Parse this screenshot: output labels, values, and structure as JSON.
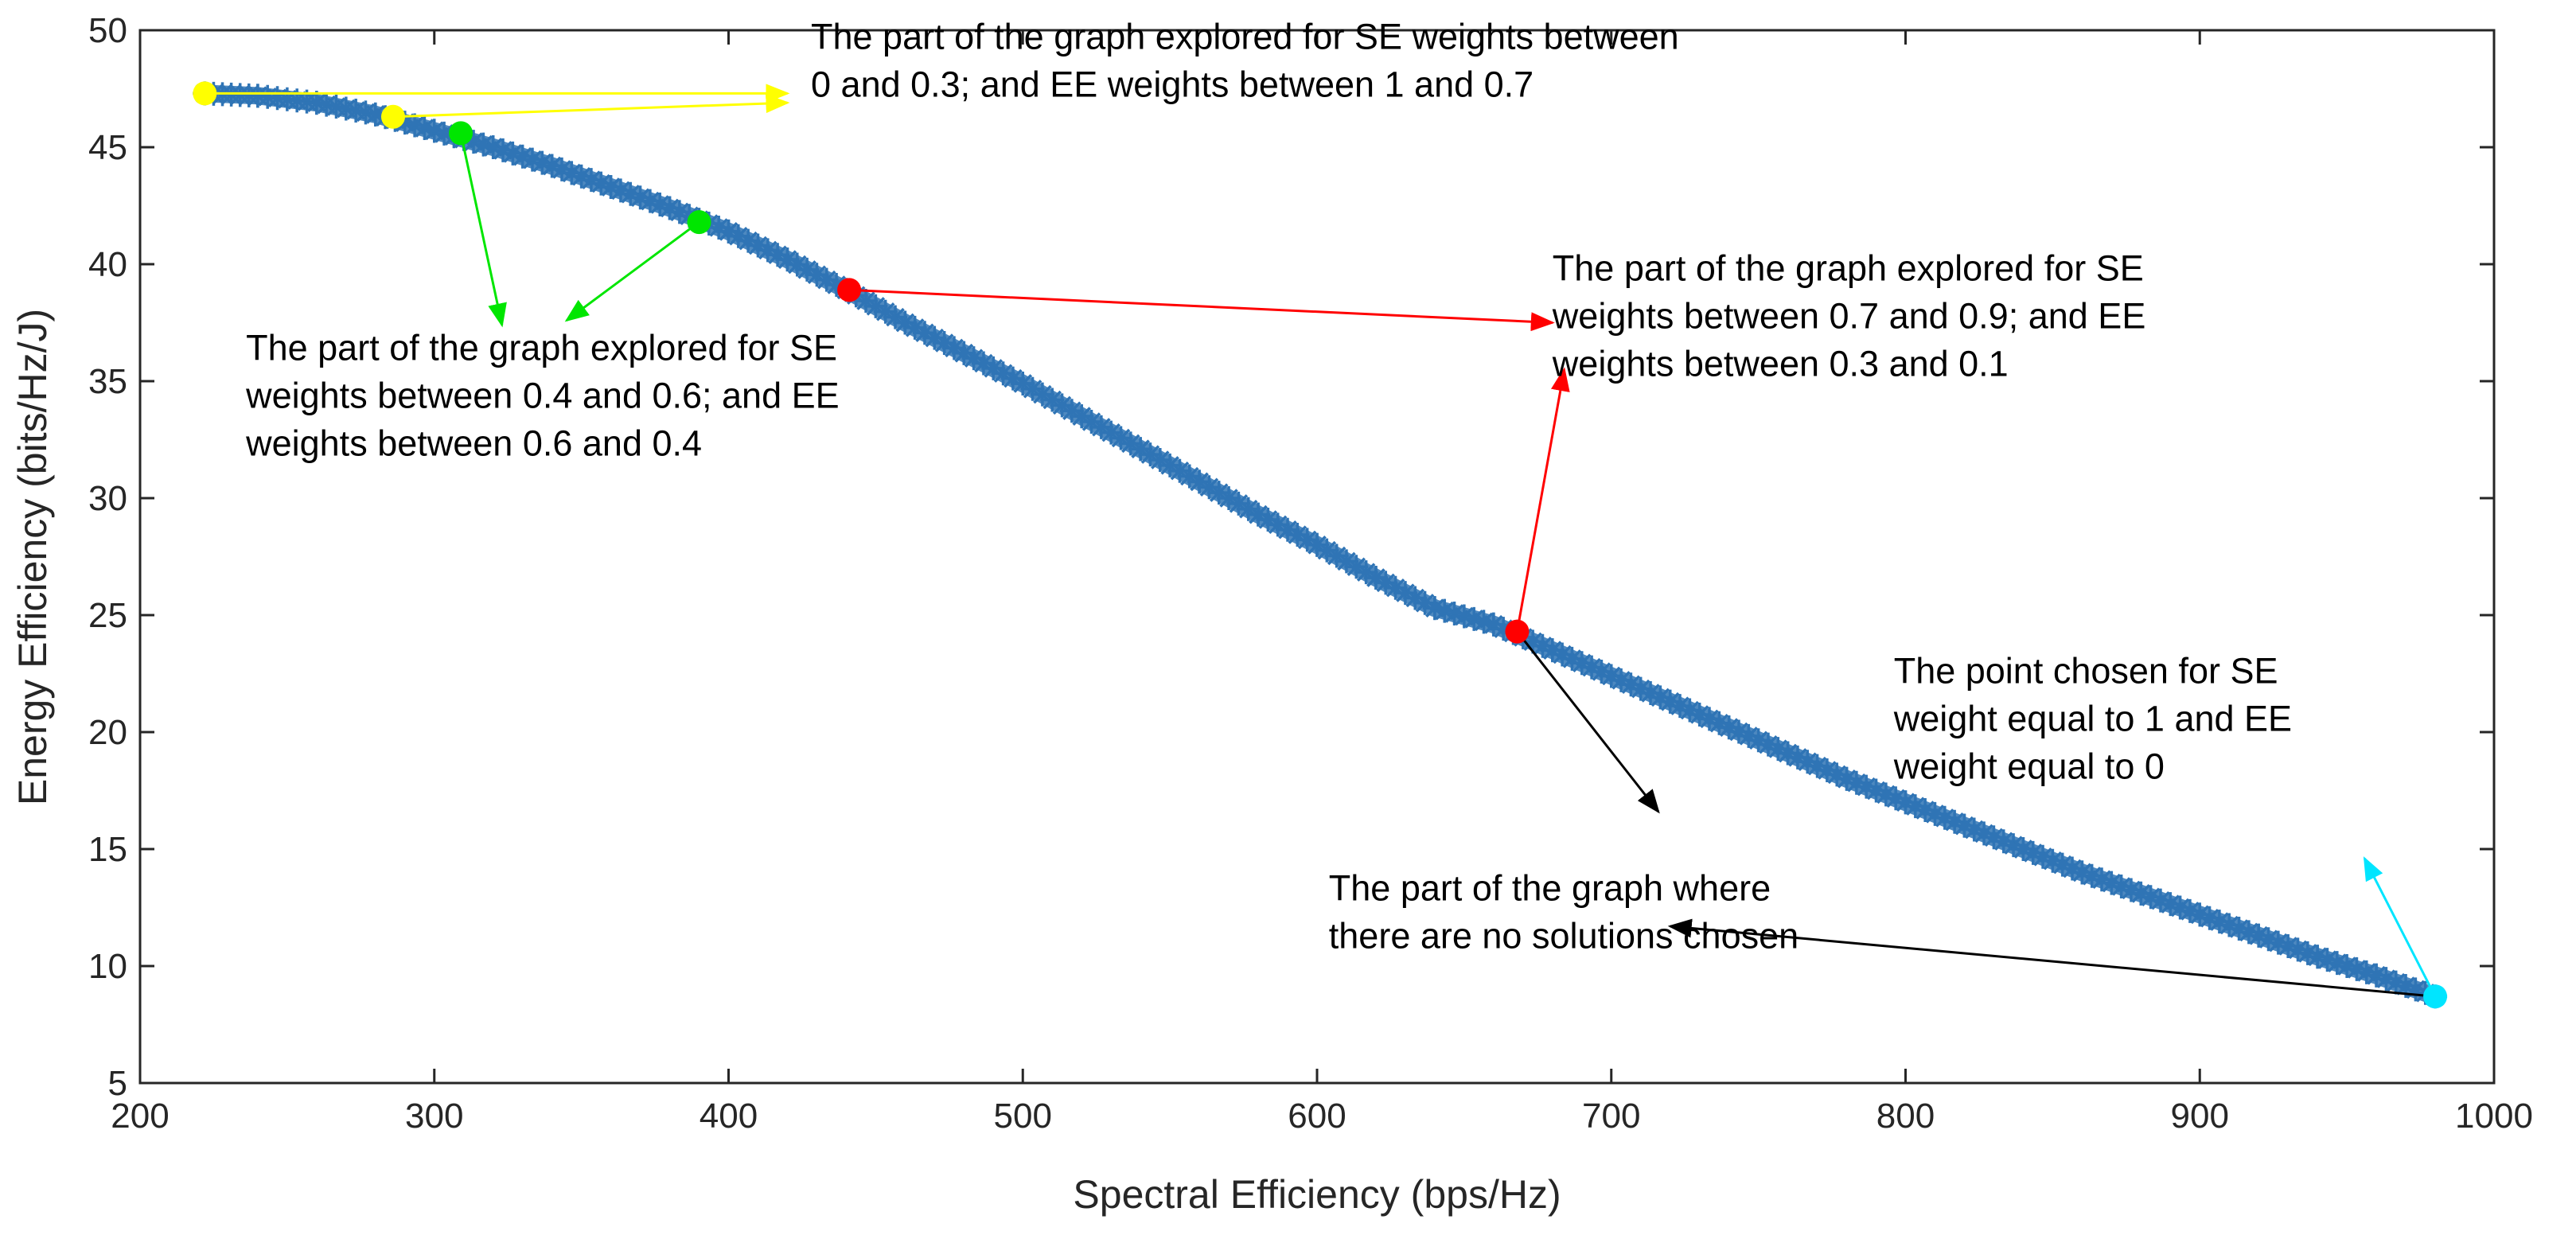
{
  "chart_data": {
    "type": "scatter",
    "title": "",
    "xlabel": "Spectral Efficiency (bps/Hz)",
    "ylabel": "Energy Efficiency (bits/Hz/J)",
    "xlim": [
      200,
      1000
    ],
    "ylim": [
      5,
      50
    ],
    "xticks": [
      200,
      300,
      400,
      500,
      600,
      700,
      800,
      900,
      1000
    ],
    "yticks": [
      5,
      10,
      15,
      20,
      25,
      30,
      35,
      40,
      45,
      50
    ],
    "grid": false,
    "colors": {
      "series": "#2f74b5",
      "yellow": "#ffff00",
      "green": "#00e600",
      "red": "#ff0000",
      "black": "#000000",
      "cyan": "#00e5ff",
      "axis": "#262626"
    },
    "series": [
      {
        "marker": "asterisk",
        "x": [
          222,
          240,
          260,
          280,
          300,
          320,
          340,
          360,
          380,
          400,
          420,
          440,
          460,
          480,
          500,
          520,
          540,
          560,
          580,
          600,
          620,
          640,
          660,
          680,
          700,
          720,
          740,
          760,
          780,
          800,
          820,
          840,
          860,
          880,
          900,
          920,
          940,
          960,
          980
        ],
        "y": [
          47.3,
          47.2,
          46.9,
          46.4,
          45.7,
          45.0,
          44.2,
          43.3,
          42.4,
          41.4,
          40.2,
          38.9,
          37.5,
          36.2,
          34.9,
          33.5,
          32.1,
          30.7,
          29.3,
          28.0,
          26.6,
          25.3,
          24.6,
          23.5,
          22.4,
          21.3,
          20.2,
          19.1,
          18.0,
          17.0,
          16.0,
          15.0,
          14.0,
          13.1,
          12.2,
          11.3,
          10.4,
          9.6,
          8.7
        ]
      }
    ],
    "highlights": [
      {
        "color": "yellow",
        "x": 222,
        "y": 47.3
      },
      {
        "color": "yellow",
        "x": 286,
        "y": 46.3
      },
      {
        "color": "green",
        "x": 309,
        "y": 45.6
      },
      {
        "color": "green",
        "x": 390,
        "y": 41.8
      },
      {
        "color": "red",
        "x": 441,
        "y": 38.9
      },
      {
        "color": "red",
        "x": 668,
        "y": 24.3
      },
      {
        "color": "cyan",
        "x": 980,
        "y": 8.7
      }
    ],
    "arrows": [
      {
        "color": "yellow",
        "from": [
          222,
          47.3
        ],
        "to": [
          420,
          47.3
        ]
      },
      {
        "color": "yellow",
        "from": [
          286,
          46.3
        ],
        "to": [
          420,
          46.9
        ]
      },
      {
        "color": "green",
        "from": [
          309,
          45.6
        ],
        "to": [
          323,
          37.4
        ]
      },
      {
        "color": "green",
        "from": [
          390,
          41.8
        ],
        "to": [
          345,
          37.6
        ]
      },
      {
        "color": "red",
        "from": [
          441,
          38.9
        ],
        "to": [
          680,
          37.5
        ]
      },
      {
        "color": "red",
        "from": [
          668,
          24.3
        ],
        "to": [
          684,
          35.5
        ]
      },
      {
        "color": "black",
        "from": [
          668,
          24.3
        ],
        "to": [
          716,
          16.6
        ]
      },
      {
        "color": "black",
        "from": [
          980,
          8.7
        ],
        "to": [
          720,
          11.7
        ]
      },
      {
        "color": "cyan",
        "from": [
          980,
          8.7
        ],
        "to": [
          956,
          14.6
        ]
      }
    ],
    "annotations": [
      {
        "id": "yellow-note",
        "anchor": [
          428,
          49.2
        ],
        "lines": [
          "The part of the graph explored for SE weights between",
          "0 and 0.3; and EE weights between 1 and 0.7"
        ]
      },
      {
        "id": "green-note",
        "anchor": [
          236,
          35.9
        ],
        "lines": [
          "The part of the graph explored for SE",
          "weights between 0.4 and 0.6; and EE",
          "weights between 0.6 and 0.4"
        ]
      },
      {
        "id": "red-note",
        "anchor": [
          680,
          39.3
        ],
        "lines": [
          "The part of the graph explored for SE",
          "weights between 0.7 and 0.9; and EE",
          "weights between 0.3 and 0.1"
        ]
      },
      {
        "id": "black-note",
        "anchor": [
          604,
          12.8
        ],
        "lines": [
          "The part of the graph where",
          "there are no solutions chosen"
        ]
      },
      {
        "id": "cyan-note",
        "anchor": [
          796,
          22.1
        ],
        "lines": [
          "The point chosen for SE",
          "weight equal to 1 and EE",
          "weight equal to 0"
        ]
      }
    ]
  }
}
